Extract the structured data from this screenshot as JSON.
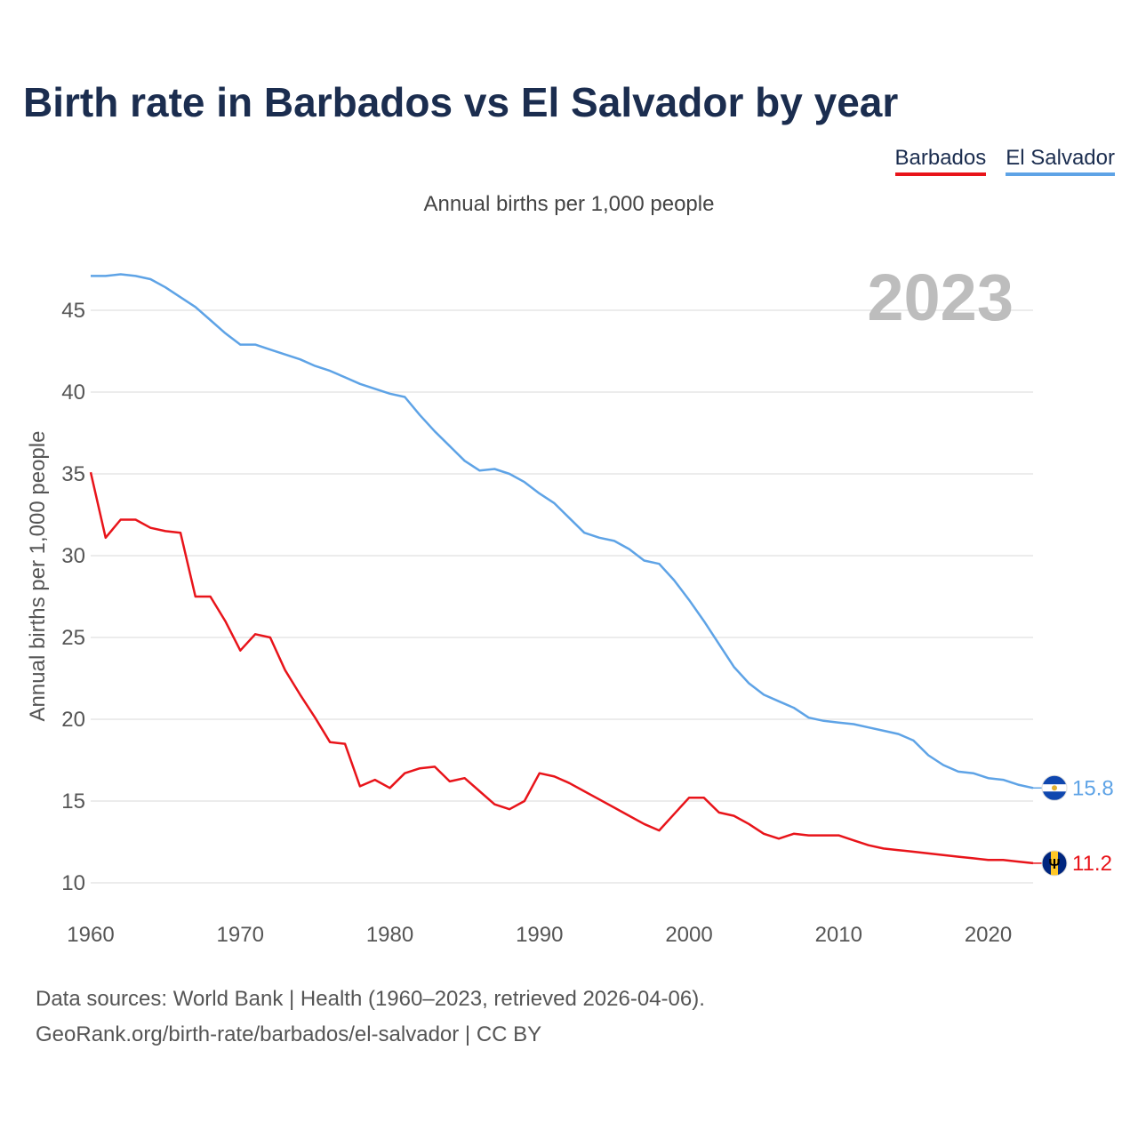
{
  "title": "Birth rate in Barbados vs El Salvador by year",
  "legend": [
    "Barbados",
    "El Salvador"
  ],
  "subtitle": "Annual births per 1,000 people",
  "year_watermark": "2023",
  "footer": {
    "line1": "Data sources: World Bank | Health (1960–2023, retrieved 2026-04-06).",
    "line2": "GeoRank.org/birth-rate/barbados/el-salvador | CC BY"
  },
  "colors": {
    "barbados": "#e8141a",
    "el_salvador": "#5ea3e6"
  },
  "chart_data": {
    "type": "line",
    "title": "Birth rate in Barbados vs El Salvador by year",
    "xlabel": "",
    "ylabel": "Annual births per 1,000 people",
    "xlim": [
      1960,
      2023
    ],
    "ylim": [
      10,
      47
    ],
    "x_ticks": [
      1960,
      1970,
      1980,
      1990,
      2000,
      2010,
      2020
    ],
    "y_ticks": [
      10,
      15,
      20,
      25,
      30,
      35,
      40,
      45
    ],
    "x": [
      1960,
      1961,
      1962,
      1963,
      1964,
      1965,
      1966,
      1967,
      1968,
      1969,
      1970,
      1971,
      1972,
      1973,
      1974,
      1975,
      1976,
      1977,
      1978,
      1979,
      1980,
      1981,
      1982,
      1983,
      1984,
      1985,
      1986,
      1987,
      1988,
      1989,
      1990,
      1991,
      1992,
      1993,
      1994,
      1995,
      1996,
      1997,
      1998,
      1999,
      2000,
      2001,
      2002,
      2003,
      2004,
      2005,
      2006,
      2007,
      2008,
      2009,
      2010,
      2011,
      2012,
      2013,
      2014,
      2015,
      2016,
      2017,
      2018,
      2019,
      2020,
      2021,
      2022,
      2023
    ],
    "series": [
      {
        "name": "Barbados",
        "end_label": "11.2",
        "values": [
          35.1,
          31.1,
          32.2,
          32.2,
          31.7,
          31.5,
          31.4,
          27.5,
          27.5,
          26.0,
          24.2,
          25.2,
          25.0,
          23.0,
          21.5,
          20.1,
          18.6,
          18.5,
          15.9,
          16.3,
          15.8,
          16.7,
          17.0,
          17.1,
          16.2,
          16.4,
          15.6,
          14.8,
          14.5,
          15.0,
          16.7,
          16.5,
          16.1,
          15.6,
          15.1,
          14.6,
          14.1,
          13.6,
          13.2,
          14.2,
          15.2,
          15.2,
          14.3,
          14.1,
          13.6,
          13.0,
          12.7,
          13.0,
          12.9,
          12.9,
          12.9,
          12.6,
          12.3,
          12.1,
          12.0,
          11.9,
          11.8,
          11.7,
          11.6,
          11.5,
          11.4,
          11.4,
          11.3,
          11.2
        ]
      },
      {
        "name": "El Salvador",
        "end_label": "15.8",
        "values": [
          47.1,
          47.1,
          47.2,
          47.1,
          46.9,
          46.4,
          45.8,
          45.2,
          44.4,
          43.6,
          42.9,
          42.9,
          42.6,
          42.3,
          42.0,
          41.6,
          41.3,
          40.9,
          40.5,
          40.2,
          39.9,
          39.7,
          38.6,
          37.6,
          36.7,
          35.8,
          35.2,
          35.3,
          35.0,
          34.5,
          33.8,
          33.2,
          32.3,
          31.4,
          31.1,
          30.9,
          30.4,
          29.7,
          29.5,
          28.5,
          27.3,
          26.0,
          24.6,
          23.2,
          22.2,
          21.5,
          21.1,
          20.7,
          20.1,
          19.9,
          19.8,
          19.7,
          19.5,
          19.3,
          19.1,
          18.7,
          17.8,
          17.2,
          16.8,
          16.7,
          16.4,
          16.3,
          16.0,
          15.8
        ]
      }
    ]
  }
}
